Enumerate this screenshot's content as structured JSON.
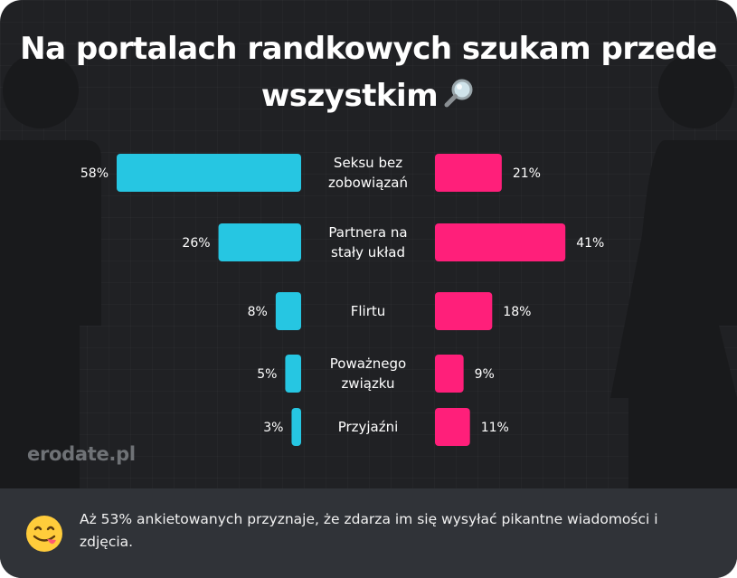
{
  "title": {
    "line1": "Na portalach randkowych szukam przede",
    "line2": "wszystkim"
  },
  "icons": {
    "title_icon": "magnifying-glass-icon",
    "footer_icon": "face-savoring-food-emoji-icon"
  },
  "colors": {
    "left_series": "#26c6e2",
    "right_series": "#ff1f7a",
    "background": "#202124",
    "footer_bg": "#303338"
  },
  "brand": "erodate.pl",
  "chart_data": {
    "type": "bar",
    "orientation": "horizontal-butterfly",
    "title": "Na portalach randkowych szukam przede wszystkim",
    "xlabel": "",
    "ylabel": "",
    "categories": [
      [
        "Seksu bez",
        "zobowiązań"
      ],
      [
        "Partnera na",
        "stały układ"
      ],
      [
        "Flirtu"
      ],
      [
        "Poważnego",
        "związku"
      ],
      [
        "Przyjaźni"
      ]
    ],
    "series": [
      {
        "name": "left",
        "color": "#26c6e2",
        "values": [
          58,
          26,
          8,
          5,
          3
        ],
        "labels": [
          "58%",
          "26%",
          "8%",
          "5%",
          "3%"
        ]
      },
      {
        "name": "right",
        "color": "#ff1f7a",
        "values": [
          21,
          41,
          18,
          9,
          11
        ],
        "labels": [
          "21%",
          "41%",
          "18%",
          "9%",
          "11%"
        ]
      }
    ],
    "unit": "%",
    "xlim": [
      0,
      60
    ],
    "grid": false,
    "legend": "none"
  },
  "footer": {
    "text": "Aż 53% ankietowanych przyznaje, że zdarza im się wysyłać pikantne wiadomości i zdjęcia."
  }
}
